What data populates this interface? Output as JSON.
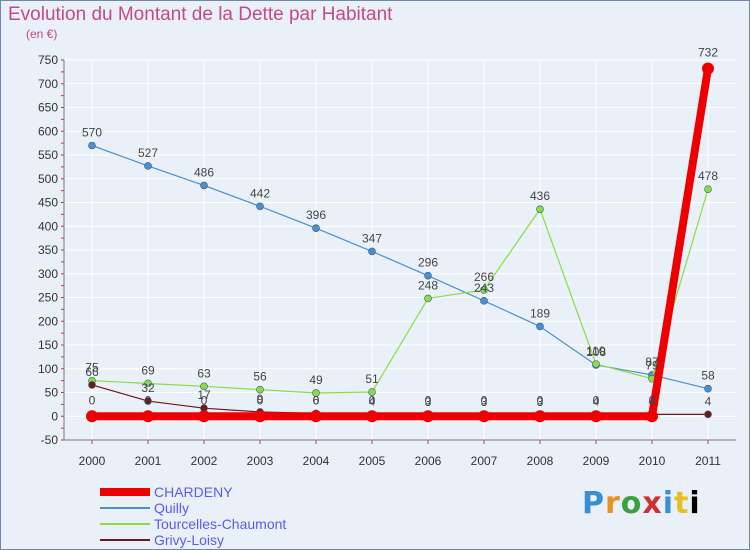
{
  "chart_data": {
    "type": "line",
    "title": "Evolution du Montant de la Dette par Habitant",
    "unit_label": "(en €)",
    "categories": [
      "2000",
      "2001",
      "2002",
      "2003",
      "2004",
      "2005",
      "2006",
      "2007",
      "2008",
      "2009",
      "2010",
      "2011"
    ],
    "ylim": [
      -50,
      750
    ],
    "yticks": [
      -50,
      0,
      50,
      100,
      150,
      200,
      250,
      300,
      350,
      400,
      450,
      500,
      550,
      600,
      650,
      700,
      750
    ],
    "grid": true,
    "legend_position": "bottom-left",
    "series": [
      {
        "name": "CHARDENY",
        "color": "#ee0000",
        "values": [
          0,
          0,
          0,
          0,
          0,
          0,
          0,
          0,
          0,
          0,
          0,
          732
        ],
        "labels": [
          "0",
          "0",
          "0",
          "0",
          "0",
          "0",
          "0",
          "0",
          "0",
          "0",
          "0",
          "732"
        ]
      },
      {
        "name": "Quilly",
        "color": "#4a90d0",
        "values": [
          570,
          527,
          486,
          442,
          396,
          347,
          296,
          243,
          189,
          108,
          87,
          58
        ],
        "labels": [
          "570",
          "527",
          "486",
          "442",
          "396",
          "347",
          "296",
          "243",
          "189",
          "108",
          "87",
          "58"
        ]
      },
      {
        "name": "Tourcelles-Chaumont",
        "color": "#88dd44",
        "values": [
          75,
          69,
          63,
          56,
          49,
          51,
          248,
          266,
          436,
          110,
          79,
          478
        ],
        "labels": [
          "75",
          "69",
          "63",
          "56",
          "49",
          "51",
          "248",
          "266",
          "436",
          "110",
          "79",
          "478"
        ]
      },
      {
        "name": "Grivy-Loisy",
        "color": "#6b1a1a",
        "values": [
          66,
          32,
          17,
          9,
          6,
          4,
          3,
          3,
          3,
          4,
          4,
          4
        ],
        "labels": [
          "66",
          "32",
          "17",
          "9",
          "6",
          "4",
          "3",
          "3",
          "3",
          "4",
          "4",
          "4"
        ]
      }
    ]
  },
  "logo": {
    "letters": [
      "P",
      "r",
      "o",
      "x",
      "i",
      "t",
      "i"
    ]
  }
}
